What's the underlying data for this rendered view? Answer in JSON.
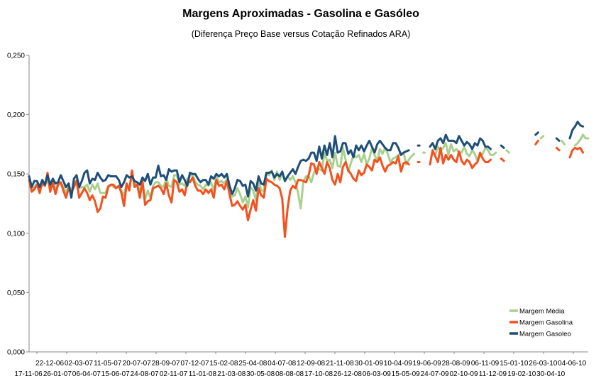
{
  "chart_data": {
    "type": "line",
    "title": "Margens Aproximadas - Gasolina e Gasóleo",
    "subtitle": "(Diferença Preço Base versus Cotação Refinados ARA)",
    "xlabel": "",
    "ylabel": "",
    "ylim": [
      0,
      0.25
    ],
    "y_ticks": [
      "0,000",
      "0,050",
      "0,100",
      "0,150",
      "0,200",
      "0,250"
    ],
    "y_tick_values": [
      0,
      0.05,
      0.1,
      0.15,
      0.2,
      0.25
    ],
    "x_tick_row1": [
      "22-12-06",
      "02-03-07",
      "11-05-07",
      "20-07-07",
      "28-09-07",
      "07-12-07",
      "15-02-08",
      "25-04-08",
      "04-07-08",
      "12-09-08",
      "21-11-08",
      "30-01-09",
      "10-04-09",
      "19-06-09",
      "28-08-09",
      "06-11-09",
      "15-01-10",
      "26-03-10",
      "04-06-10"
    ],
    "x_tick_row2": [
      "17-11-06",
      "26-01-07",
      "06-04-07",
      "15-06-07",
      "24-08-07",
      "02-11-07",
      "11-01-08",
      "21-03-08",
      "30-05-08",
      "08-08-08",
      "17-10-08",
      "26-12-08",
      "06-03-09",
      "15-05-09",
      "24-07-09",
      "02-10-09",
      "11-12-09",
      "19-02-10",
      "30-04-10"
    ],
    "grid": false,
    "legend_position": "bottom-right",
    "series": [
      {
        "name": "Margem Média",
        "color": "#a9d18e",
        "values": [
          0.145,
          0.137,
          0.139,
          0.142,
          0.136,
          0.141,
          0.14,
          0.145,
          0.137,
          0.143,
          0.137,
          0.142,
          0.142,
          0.14,
          0.134,
          0.14,
          0.136,
          0.142,
          0.145,
          0.138,
          0.139,
          0.139,
          0.141,
          0.135,
          0.141,
          0.137,
          0.142,
          0.134,
          0.134,
          0.134,
          0.14,
          0.141,
          0.139,
          0.138,
          0.14,
          0.136,
          0.132,
          0.142,
          0.137,
          0.149,
          0.141,
          0.142,
          0.135,
          0.143,
          0.129,
          0.136,
          0.13,
          0.14,
          0.143,
          0.143,
          0.14,
          0.139,
          0.146,
          0.14,
          0.139,
          0.149,
          0.149,
          0.141,
          0.142,
          0.14,
          0.146,
          0.148,
          0.15,
          0.143,
          0.141,
          0.14,
          0.137,
          0.141,
          0.14,
          0.143,
          0.136,
          0.148,
          0.143,
          0.144,
          0.142,
          0.146,
          0.136,
          0.131,
          0.132,
          0.138,
          0.133,
          0.126,
          0.131,
          0.122,
          0.139,
          0.136,
          0.128,
          0.145,
          0.136,
          0.136,
          0.15,
          0.149,
          0.153,
          0.145,
          0.152,
          0.145,
          0.151,
          0.144,
          0.148,
          0.145,
          0.148,
          0.143,
          0.134,
          0.121,
          0.144,
          0.148,
          0.148,
          0.143,
          0.151,
          0.155,
          0.154,
          0.153,
          0.168,
          0.161,
          0.162,
          0.155,
          0.168,
          0.157,
          0.156,
          0.172,
          0.162,
          0.152,
          0.159,
          0.166,
          0.164,
          0.166,
          0.16,
          0.167,
          0.158,
          0.163,
          0.172,
          0.166,
          0.161,
          0.171,
          0.167,
          0.172,
          0.167,
          0.16,
          0.163,
          0.164,
          0.166,
          0.167,
          0.168,
          0.158,
          0.162,
          0.165,
          0.167,
          null,
          null,
          null,
          0.168,
          null,
          null,
          null,
          0.166,
          0.173,
          0.169,
          0.172,
          0.176,
          0.166,
          0.175,
          0.169,
          0.171,
          0.168,
          0.168,
          0.173,
          0.167,
          0.165,
          0.17,
          0.167,
          0.161,
          0.165,
          0.167,
          0.172,
          0.17,
          0.166,
          0.166,
          0.168,
          null,
          null,
          null,
          0.17,
          0.168,
          null,
          null,
          null,
          null,
          null,
          null,
          null,
          null,
          null,
          null,
          null,
          0.18,
          0.182,
          null,
          null,
          null,
          null,
          null,
          null,
          0.178,
          0.175,
          null,
          null,
          null,
          0.174,
          0.176,
          0.179,
          0.183,
          0.18,
          0.18
        ]
      },
      {
        "name": "Margem Gasolina",
        "color": "#f4511e",
        "values": [
          0.145,
          0.135,
          0.137,
          0.141,
          0.134,
          0.143,
          0.14,
          0.151,
          0.135,
          0.143,
          0.133,
          0.141,
          0.143,
          0.136,
          0.13,
          0.138,
          0.134,
          0.139,
          0.144,
          0.13,
          0.134,
          0.138,
          0.134,
          0.128,
          0.132,
          0.127,
          0.118,
          0.121,
          0.131,
          0.13,
          0.139,
          0.141,
          0.141,
          0.138,
          0.14,
          0.134,
          0.123,
          0.142,
          0.136,
          0.153,
          0.139,
          0.141,
          0.13,
          0.144,
          0.124,
          0.127,
          0.128,
          0.138,
          0.139,
          0.14,
          0.138,
          0.133,
          0.142,
          0.132,
          0.126,
          0.145,
          0.143,
          0.135,
          0.137,
          0.132,
          0.143,
          0.143,
          0.147,
          0.14,
          0.136,
          0.136,
          0.133,
          0.137,
          0.134,
          0.137,
          0.13,
          0.145,
          0.14,
          0.141,
          0.137,
          0.144,
          0.133,
          0.123,
          0.124,
          0.127,
          0.123,
          0.12,
          0.124,
          0.111,
          0.12,
          0.128,
          0.119,
          0.138,
          0.132,
          0.13,
          0.146,
          0.144,
          0.143,
          0.141,
          0.14,
          0.138,
          0.129,
          0.097,
          0.121,
          0.136,
          0.14,
          0.138,
          0.145,
          0.145,
          0.144,
          0.143,
          0.149,
          0.159,
          0.158,
          0.15,
          0.16,
          0.155,
          0.15,
          0.16,
          0.155,
          0.145,
          0.141,
          0.15,
          0.143,
          0.156,
          0.16,
          0.153,
          0.15,
          0.146,
          0.144,
          0.153,
          0.149,
          0.151,
          0.158,
          0.156,
          0.153,
          0.162,
          0.16,
          0.164,
          0.157,
          0.152,
          0.157,
          0.158,
          0.16,
          0.159,
          0.165,
          0.152,
          0.159,
          0.16,
          0.158,
          null,
          null,
          null,
          0.16,
          null,
          null,
          null,
          0.158,
          0.17,
          0.165,
          0.16,
          0.172,
          0.159,
          0.166,
          0.162,
          0.166,
          0.162,
          0.16,
          0.169,
          0.161,
          0.158,
          0.162,
          0.16,
          0.155,
          0.158,
          0.16,
          0.168,
          0.163,
          0.16,
          0.16,
          0.162,
          null,
          null,
          null,
          0.163,
          0.161,
          null,
          null,
          null,
          null,
          null,
          null,
          null,
          null,
          null,
          null,
          null,
          0.175,
          0.178,
          null,
          null,
          null,
          null,
          null,
          null,
          0.172,
          0.17,
          null,
          null,
          null,
          0.164,
          0.17,
          0.172,
          0.171,
          0.172,
          0.168
        ]
      },
      {
        "name": "Margem Gasoleo",
        "color": "#1f4e79",
        "values": [
          0.148,
          0.139,
          0.144,
          0.144,
          0.139,
          0.145,
          0.141,
          0.149,
          0.141,
          0.146,
          0.142,
          0.143,
          0.149,
          0.144,
          0.139,
          0.142,
          0.13,
          0.146,
          0.149,
          0.139,
          0.144,
          0.151,
          0.153,
          0.142,
          0.146,
          0.145,
          0.151,
          0.147,
          0.144,
          0.145,
          0.149,
          0.148,
          0.148,
          0.148,
          0.145,
          0.139,
          0.143,
          0.149,
          0.147,
          0.148,
          0.144,
          0.143,
          0.141,
          0.147,
          0.144,
          0.15,
          0.141,
          0.147,
          0.147,
          0.157,
          0.148,
          0.149,
          0.145,
          0.154,
          0.152,
          0.153,
          0.153,
          0.143,
          0.149,
          0.145,
          0.14,
          0.151,
          0.15,
          0.15,
          0.146,
          0.143,
          0.145,
          0.145,
          0.141,
          0.148,
          0.146,
          0.15,
          0.148,
          0.15,
          0.147,
          0.15,
          0.14,
          0.133,
          0.138,
          0.145,
          0.144,
          0.14,
          0.141,
          0.131,
          0.144,
          0.142,
          0.136,
          0.148,
          0.142,
          0.141,
          0.151,
          0.151,
          0.152,
          0.147,
          0.15,
          0.148,
          0.152,
          0.144,
          0.148,
          0.151,
          0.154,
          0.15,
          0.156,
          0.161,
          0.162,
          0.161,
          0.163,
          0.168,
          0.168,
          0.161,
          0.173,
          0.163,
          0.174,
          0.166,
          0.176,
          0.164,
          0.182,
          0.168,
          0.169,
          0.176,
          0.176,
          0.167,
          0.17,
          0.164,
          0.174,
          0.17,
          0.174,
          0.169,
          0.174,
          0.178,
          0.173,
          0.168,
          0.175,
          0.178,
          0.175,
          0.172,
          0.17,
          0.17,
          0.176,
          0.176,
          0.172,
          0.166,
          0.168,
          0.169,
          0.17,
          null,
          null,
          null,
          0.174,
          null,
          null,
          null,
          0.173,
          0.176,
          0.171,
          0.178,
          0.18,
          0.176,
          0.183,
          0.178,
          0.178,
          0.178,
          0.176,
          0.182,
          0.178,
          0.174,
          0.177,
          0.175,
          0.171,
          0.176,
          0.174,
          0.18,
          0.178,
          0.173,
          0.173,
          0.171,
          null,
          null,
          null,
          0.174,
          0.172,
          null,
          null,
          null,
          null,
          null,
          null,
          null,
          null,
          null,
          null,
          null,
          0.183,
          0.185,
          null,
          null,
          null,
          null,
          null,
          null,
          0.18,
          0.178,
          null,
          null,
          null,
          0.18,
          0.187,
          0.19,
          0.194,
          0.191,
          0.19
        ]
      }
    ]
  }
}
